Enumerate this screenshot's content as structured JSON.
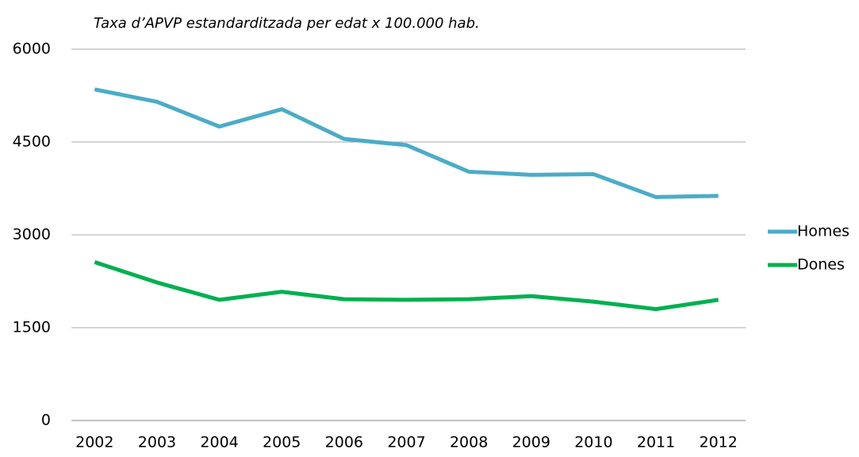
{
  "chart_data": {
    "type": "line",
    "title": "Taxa d’APVP estandarditzada per edat x 100.000 hab.",
    "categories": [
      "2002",
      "2003",
      "2004",
      "2005",
      "2006",
      "2007",
      "2008",
      "2009",
      "2010",
      "2011",
      "2012"
    ],
    "series": [
      {
        "name": "Homes",
        "color": "#4bacc6",
        "values": [
          5350,
          5150,
          4750,
          5030,
          4550,
          4450,
          4020,
          3970,
          3980,
          3610,
          3630
        ]
      },
      {
        "name": "Dones",
        "color": "#00b050",
        "values": [
          2560,
          2230,
          1950,
          2080,
          1960,
          1950,
          1960,
          2010,
          1920,
          1800,
          1950
        ]
      }
    ],
    "ylim": [
      0,
      6000
    ],
    "yticks": [
      0,
      1500,
      3000,
      4500,
      6000
    ],
    "grid": true,
    "legend": "right"
  }
}
